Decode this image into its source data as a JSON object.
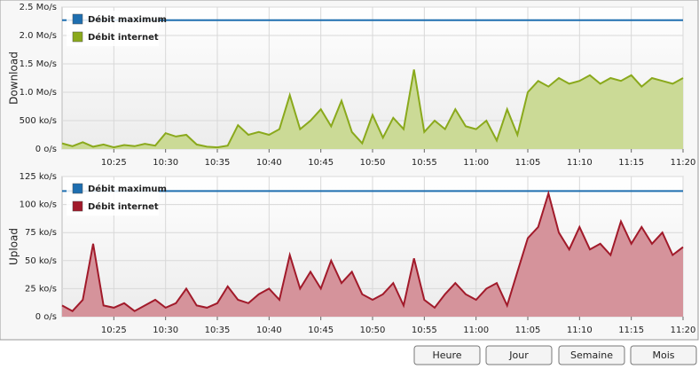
{
  "chart_data": [
    {
      "type": "area",
      "ylabel": "Download",
      "x": [
        620,
        621,
        622,
        623,
        624,
        625,
        626,
        627,
        628,
        629,
        630,
        631,
        632,
        633,
        634,
        635,
        636,
        637,
        638,
        639,
        640,
        641,
        642,
        643,
        644,
        645,
        646,
        647,
        648,
        649,
        650,
        651,
        652,
        653,
        654,
        655,
        656,
        657,
        658,
        659,
        660,
        661,
        662,
        663,
        664,
        665,
        666,
        667,
        668,
        669,
        670,
        671,
        672,
        673,
        674,
        675,
        676,
        677,
        678,
        679,
        680
      ],
      "xlim": [
        620,
        680
      ],
      "xticks": [
        {
          "value": 625,
          "label": "10:25"
        },
        {
          "value": 630,
          "label": "10:30"
        },
        {
          "value": 635,
          "label": "10:35"
        },
        {
          "value": 640,
          "label": "10:40"
        },
        {
          "value": 645,
          "label": "10:45"
        },
        {
          "value": 650,
          "label": "10:50"
        },
        {
          "value": 655,
          "label": "10:55"
        },
        {
          "value": 660,
          "label": "11:00"
        },
        {
          "value": 665,
          "label": "11:05"
        },
        {
          "value": 670,
          "label": "11:10"
        },
        {
          "value": 675,
          "label": "11:15"
        },
        {
          "value": 680,
          "label": "11:20"
        }
      ],
      "ylim": [
        0,
        2500
      ],
      "yticks": [
        {
          "value": 0,
          "label": "0 o/s"
        },
        {
          "value": 500,
          "label": "500 ko/s"
        },
        {
          "value": 1000,
          "label": "1.0 Mo/s"
        },
        {
          "value": 1500,
          "label": "1.5 Mo/s"
        },
        {
          "value": 2000,
          "label": "2.0 Mo/s"
        },
        {
          "value": 2500,
          "label": "2.5 Mo/s"
        }
      ],
      "grid": true,
      "series": [
        {
          "name": "Débit maximum",
          "color": "#1f6fb0",
          "value": 2270
        },
        {
          "name": "Débit internet",
          "color": "#8aa91c",
          "fill": "#cbda96",
          "values": [
            100,
            50,
            120,
            40,
            80,
            30,
            70,
            50,
            90,
            60,
            280,
            220,
            250,
            80,
            40,
            30,
            60,
            420,
            250,
            300,
            250,
            350,
            950,
            350,
            500,
            700,
            400,
            850,
            300,
            100,
            600,
            200,
            550,
            350,
            1400,
            300,
            500,
            350,
            700,
            400,
            350,
            500,
            150,
            700,
            250,
            1000,
            1200,
            1100,
            1250,
            1150,
            1200,
            1300,
            1150,
            1250,
            1200,
            1300,
            1100,
            1250,
            1200,
            1150,
            1250
          ]
        }
      ]
    },
    {
      "type": "area",
      "ylabel": "Upload",
      "x": [
        620,
        621,
        622,
        623,
        624,
        625,
        626,
        627,
        628,
        629,
        630,
        631,
        632,
        633,
        634,
        635,
        636,
        637,
        638,
        639,
        640,
        641,
        642,
        643,
        644,
        645,
        646,
        647,
        648,
        649,
        650,
        651,
        652,
        653,
        654,
        655,
        656,
        657,
        658,
        659,
        660,
        661,
        662,
        663,
        664,
        665,
        666,
        667,
        668,
        669,
        670,
        671,
        672,
        673,
        674,
        675,
        676,
        677,
        678,
        679,
        680
      ],
      "xlim": [
        620,
        680
      ],
      "xticks": [
        {
          "value": 625,
          "label": "10:25"
        },
        {
          "value": 630,
          "label": "10:30"
        },
        {
          "value": 635,
          "label": "10:35"
        },
        {
          "value": 640,
          "label": "10:40"
        },
        {
          "value": 645,
          "label": "10:45"
        },
        {
          "value": 650,
          "label": "10:50"
        },
        {
          "value": 655,
          "label": "10:55"
        },
        {
          "value": 660,
          "label": "11:00"
        },
        {
          "value": 665,
          "label": "11:05"
        },
        {
          "value": 670,
          "label": "11:10"
        },
        {
          "value": 675,
          "label": "11:15"
        },
        {
          "value": 680,
          "label": "11:20"
        }
      ],
      "ylim": [
        0,
        125
      ],
      "yticks": [
        {
          "value": 0,
          "label": "0 o/s"
        },
        {
          "value": 25,
          "label": "25 ko/s"
        },
        {
          "value": 50,
          "label": "50 ko/s"
        },
        {
          "value": 75,
          "label": "75 ko/s"
        },
        {
          "value": 100,
          "label": "100 ko/s"
        },
        {
          "value": 125,
          "label": "125 ko/s"
        }
      ],
      "grid": true,
      "series": [
        {
          "name": "Débit maximum",
          "color": "#1f6fb0",
          "value": 112
        },
        {
          "name": "Débit internet",
          "color": "#a11a2a",
          "fill": "#d5939b",
          "values": [
            10,
            5,
            15,
            65,
            10,
            8,
            12,
            5,
            10,
            15,
            8,
            12,
            25,
            10,
            8,
            12,
            27,
            15,
            12,
            20,
            25,
            15,
            55,
            25,
            40,
            25,
            50,
            30,
            40,
            20,
            15,
            20,
            30,
            10,
            52,
            15,
            8,
            20,
            30,
            20,
            15,
            25,
            30,
            10,
            40,
            70,
            80,
            110,
            75,
            60,
            80,
            60,
            65,
            55,
            85,
            65,
            80,
            65,
            75,
            55,
            62
          ]
        }
      ]
    }
  ],
  "buttons": [
    "Heure",
    "Jour",
    "Semaine",
    "Mois"
  ]
}
